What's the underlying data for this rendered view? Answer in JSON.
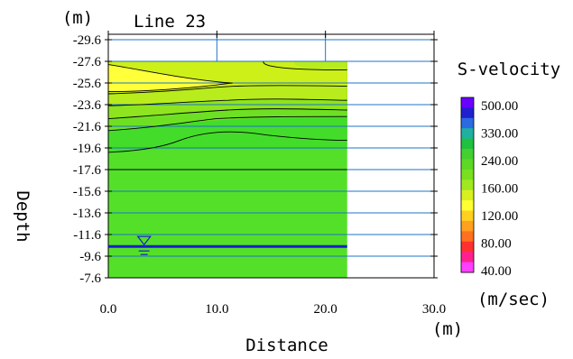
{
  "chart_data": {
    "type": "heatmap",
    "title": "Line 23",
    "xlabel": "Distance",
    "ylabel": "Depth",
    "x_unit": "(m)",
    "y_unit": "(m)",
    "x_ticks": [
      0,
      10,
      20,
      30
    ],
    "x_tick_labels": [
      "0.0",
      "10.0",
      "20.0",
      "30.0"
    ],
    "xlim": [
      0,
      30
    ],
    "y_ticks": [
      -29.6,
      -27.6,
      -25.6,
      -23.6,
      -21.6,
      -19.6,
      -17.6,
      -15.6,
      -13.6,
      -11.6,
      -9.6,
      -7.6
    ],
    "y_tick_labels": [
      "-29.6",
      "-27.6",
      "-25.6",
      "-23.6",
      "-21.6",
      "-19.6",
      "-17.6",
      "-15.6",
      "-13.6",
      "-11.6",
      "-9.6",
      "-7.6"
    ],
    "ylim": [
      -30.1,
      -7.6
    ],
    "data_extent": {
      "x": [
        0,
        22
      ],
      "y": [
        -27.6,
        -7.6
      ]
    },
    "grid": true,
    "legend": {
      "title": "S-velocity",
      "unit": "(m/sec)",
      "placement": "right",
      "labels": [
        "500.00",
        "330.00",
        "240.00",
        "160.00",
        "120.00",
        "80.00",
        "40.00"
      ],
      "colors": [
        "#6a00ff",
        "#2020d0",
        "#2a6be0",
        "#20b0a0",
        "#20c040",
        "#44d030",
        "#5ed826",
        "#78e020",
        "#a0e820",
        "#d8f020",
        "#ffff33",
        "#ffd020",
        "#ffa020",
        "#ff7020",
        "#ff3030",
        "#ff2090",
        "#ff40ff"
      ]
    },
    "fill_colors": {
      "base": "#54e028",
      "bands": [
        "#44dc2a",
        "#6ee024",
        "#8ee41e",
        "#b8ec1c",
        "#ccf018",
        "#ffff3a"
      ]
    },
    "water_table_depth": -10.5,
    "regions": [
      {
        "velocity_class": "160-200",
        "x": [
          0,
          11.5
        ],
        "y": [
          -27.6,
          -24.9
        ]
      },
      {
        "velocity_class": "200-240",
        "x": [
          0,
          22
        ],
        "y": [
          -27.6,
          -20.3
        ]
      },
      {
        "velocity_class": "240-280",
        "x": [
          0,
          22
        ],
        "y": [
          -20.3,
          -7.6
        ]
      }
    ]
  }
}
